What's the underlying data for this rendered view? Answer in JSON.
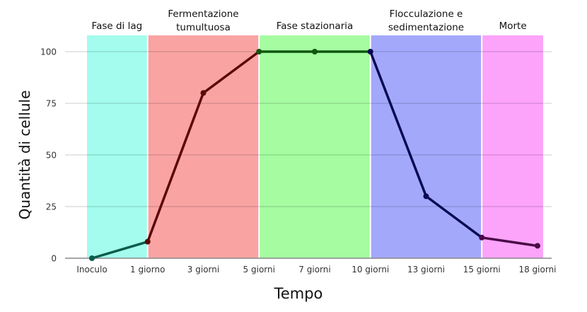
{
  "chart_data": {
    "type": "line",
    "xlabel": "Tempo",
    "ylabel": "Quantità di cellule",
    "ylim": [
      0,
      100
    ],
    "yticks": [
      0,
      25,
      50,
      75,
      100
    ],
    "grid": true,
    "categories": [
      "Inoculo",
      "1 giorno",
      "3 giorni",
      "5 giorni",
      "7 giorni",
      "10 giorni",
      "13 giorni",
      "15 giorni",
      "18 giorni"
    ],
    "values": [
      0,
      8,
      80,
      100,
      100,
      100,
      30,
      10,
      6
    ],
    "phases": [
      {
        "label": [
          "Fase di lag"
        ],
        "from": 0,
        "to": 1,
        "color": "#a3fced",
        "line_color": "#0c5c4c"
      },
      {
        "label": [
          "Fermentazione",
          "tumultuosa"
        ],
        "from": 1,
        "to": 3,
        "color": "#f9a3a3",
        "line_color": "#5a0808"
      },
      {
        "label": [
          "Fase stazionaria"
        ],
        "from": 3,
        "to": 5,
        "color": "#a5fca1",
        "line_color": "#0e560e"
      },
      {
        "label": [
          "Flocculazione e",
          "sedimentazione"
        ],
        "from": 5,
        "to": 7,
        "color": "#a3a8fb",
        "line_color": "#0a0a52"
      },
      {
        "label": [
          "Morte"
        ],
        "from": 7,
        "to": 8,
        "color": "#fca3fa",
        "line_color": "#4a0848"
      }
    ]
  }
}
